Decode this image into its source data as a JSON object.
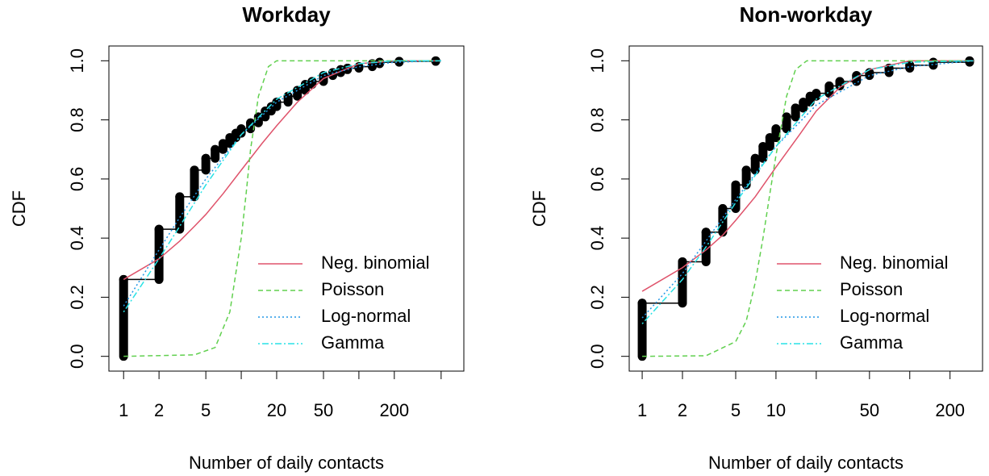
{
  "chart_data": [
    {
      "type": "ecdf",
      "title": "Workday",
      "xlabel": "Number of daily contacts",
      "ylabel": "CDF",
      "xlog": true,
      "xlim": [
        0.75,
        780
      ],
      "ylim": [
        -0.05,
        1.05
      ],
      "xticks": [
        1,
        2,
        5,
        {
          "value": 10,
          "label": null
        },
        20,
        50,
        {
          "value": 100,
          "label": null
        },
        200,
        {
          "value": 500,
          "label": null
        }
      ],
      "yticks": [
        {
          "value": 0,
          "label": "0.0"
        },
        0.2,
        0.4,
        0.6,
        0.8,
        {
          "value": 1,
          "label": "1.0"
        }
      ],
      "legend": "bottom-right",
      "series": [
        {
          "color": "#000000",
          "marker": "points",
          "x": [
            1,
            2,
            3,
            4,
            5,
            6,
            7,
            8,
            9,
            10,
            12,
            14,
            16,
            18,
            20,
            25,
            30,
            35,
            40,
            50,
            60,
            70,
            80,
            100,
            130,
            150,
            220,
            450
          ],
          "values": [
            0.26,
            0.43,
            0.54,
            0.63,
            0.67,
            0.7,
            0.72,
            0.74,
            0.755,
            0.77,
            0.79,
            0.81,
            0.83,
            0.845,
            0.86,
            0.88,
            0.9,
            0.92,
            0.93,
            0.95,
            0.96,
            0.97,
            0.975,
            0.98,
            0.99,
            0.995,
            0.998,
            1.0
          ]
        },
        {
          "name": "Neg. binomial",
          "color": "#df536b",
          "dash": "solid",
          "x": [
            1,
            2,
            3,
            4,
            5,
            7,
            10,
            15,
            20,
            30,
            50,
            100,
            200,
            500
          ],
          "values": [
            0.26,
            0.33,
            0.39,
            0.44,
            0.48,
            0.55,
            0.63,
            0.72,
            0.78,
            0.86,
            0.94,
            0.99,
            1.0,
            1.0
          ]
        },
        {
          "name": "Poisson",
          "color": "#61d04f",
          "dash": "dashed",
          "x": [
            1,
            4,
            6,
            8,
            10,
            11,
            12,
            14,
            17,
            20,
            500
          ],
          "values": [
            0,
            0.005,
            0.03,
            0.15,
            0.4,
            0.55,
            0.7,
            0.88,
            0.98,
            1.0,
            1.0
          ]
        },
        {
          "name": "Log-normal",
          "color": "#2297e6",
          "dash": "dotted",
          "x": [
            1,
            2,
            3,
            5,
            10,
            20,
            50,
            100,
            200,
            500
          ],
          "values": [
            0.17,
            0.36,
            0.47,
            0.6,
            0.75,
            0.86,
            0.95,
            0.98,
            0.995,
            1.0
          ]
        },
        {
          "name": "Gamma",
          "color": "#28e2e5",
          "dash": "dotdash",
          "x": [
            1,
            2,
            3,
            5,
            10,
            20,
            50,
            100,
            200,
            500
          ],
          "values": [
            0.15,
            0.33,
            0.44,
            0.58,
            0.75,
            0.87,
            0.96,
            0.99,
            1.0,
            1.0
          ]
        }
      ]
    },
    {
      "type": "ecdf",
      "title": "Non-workday",
      "xlabel": "Number of daily contacts",
      "ylabel": "CDF",
      "xlog": true,
      "xlim": [
        0.8,
        350
      ],
      "ylim": [
        -0.05,
        1.05
      ],
      "xticks": [
        1,
        2,
        5,
        10,
        {
          "value": 20,
          "label": null
        },
        50,
        {
          "value": 100,
          "label": null
        },
        200
      ],
      "yticks": [
        {
          "value": 0,
          "label": "0.0"
        },
        0.2,
        0.4,
        0.6,
        0.8,
        {
          "value": 1,
          "label": "1.0"
        }
      ],
      "legend": "bottom-right",
      "series": [
        {
          "color": "#000000",
          "marker": "points",
          "x": [
            1,
            2,
            3,
            4,
            5,
            6,
            7,
            8,
            9,
            10,
            12,
            14,
            16,
            18,
            20,
            25,
            30,
            40,
            50,
            70,
            100,
            150,
            280
          ],
          "values": [
            0.18,
            0.32,
            0.42,
            0.5,
            0.58,
            0.63,
            0.67,
            0.71,
            0.74,
            0.77,
            0.81,
            0.84,
            0.86,
            0.88,
            0.89,
            0.915,
            0.93,
            0.95,
            0.96,
            0.975,
            0.985,
            0.995,
            1.0
          ]
        },
        {
          "name": "Neg. binomial",
          "color": "#df536b",
          "dash": "solid",
          "x": [
            1,
            2,
            3,
            4,
            5,
            7,
            10,
            15,
            20,
            30,
            50,
            100,
            300
          ],
          "values": [
            0.22,
            0.3,
            0.36,
            0.41,
            0.46,
            0.54,
            0.64,
            0.75,
            0.83,
            0.91,
            0.97,
            1.0,
            1.0
          ]
        },
        {
          "name": "Poisson",
          "color": "#61d04f",
          "dash": "dashed",
          "x": [
            1,
            3,
            5,
            6,
            7,
            8,
            9,
            10,
            12,
            14,
            17,
            300
          ],
          "values": [
            0,
            0.002,
            0.05,
            0.12,
            0.25,
            0.4,
            0.55,
            0.68,
            0.88,
            0.97,
            1.0,
            1.0
          ]
        },
        {
          "name": "Log-normal",
          "color": "#2297e6",
          "dash": "dotted",
          "x": [
            1,
            2,
            3,
            5,
            10,
            20,
            50,
            100,
            300
          ],
          "values": [
            0.13,
            0.28,
            0.39,
            0.53,
            0.71,
            0.85,
            0.95,
            0.98,
            1.0
          ]
        },
        {
          "name": "Gamma",
          "color": "#28e2e5",
          "dash": "dotdash",
          "x": [
            1,
            2,
            3,
            5,
            10,
            20,
            50,
            100,
            300
          ],
          "values": [
            0.11,
            0.26,
            0.37,
            0.52,
            0.71,
            0.87,
            0.97,
            0.995,
            1.0
          ]
        }
      ]
    }
  ]
}
